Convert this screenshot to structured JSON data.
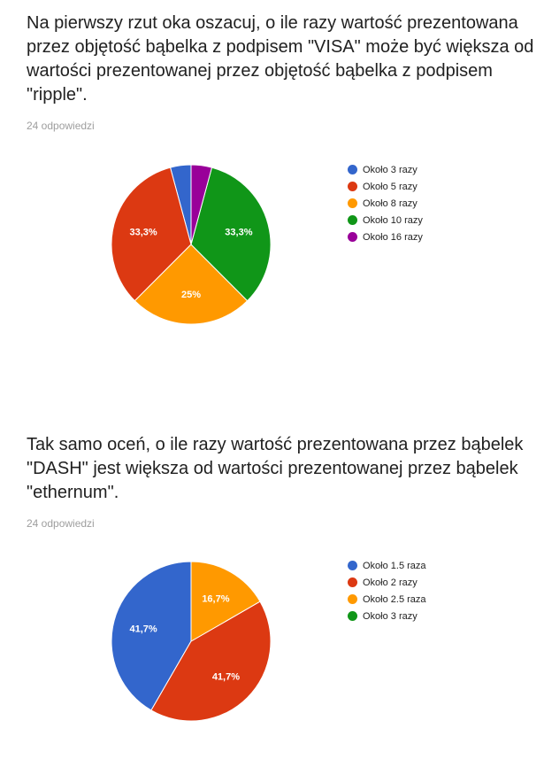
{
  "questions": [
    {
      "title": "Na pierwszy rzut oka oszacuj, o ile razy wartość prezentowana przez objętość bąbelka z podpisem \"VISA\" może być większa od wartości prezentowanej przez objętość bąbelka z podpisem \"ripple\".",
      "responses": "24 odpowiedzi"
    },
    {
      "title": "Tak samo oceń, o ile razy wartość prezentowana przez bąbelek \"DASH\" jest większa od wartości prezentowanej przez bąbelek \"ethernum\".",
      "responses": "24 odpowiedzi"
    }
  ],
  "chart_data": [
    {
      "type": "pie",
      "categories": [
        "Około 3 razy",
        "Około 5 razy",
        "Około 8 razy",
        "Około 10 razy",
        "Około 16 razy"
      ],
      "values": [
        4.2,
        33.3,
        25,
        33.3,
        4.2
      ],
      "data_labels": [
        "",
        "33,3%",
        "25%",
        "33,3%",
        ""
      ],
      "colors": [
        "#3366cc",
        "#dc3912",
        "#ff9900",
        "#109618",
        "#990099"
      ],
      "legend_position": "right"
    },
    {
      "type": "pie",
      "categories": [
        "Około 1.5 raza",
        "Około 2 razy",
        "Około 2.5 raza",
        "Około 3 razy"
      ],
      "values": [
        41.7,
        41.7,
        16.7,
        0
      ],
      "data_labels": [
        "41,7%",
        "41,7%",
        "16,7%",
        ""
      ],
      "colors": [
        "#3366cc",
        "#dc3912",
        "#ff9900",
        "#109618"
      ],
      "legend_position": "right"
    }
  ]
}
